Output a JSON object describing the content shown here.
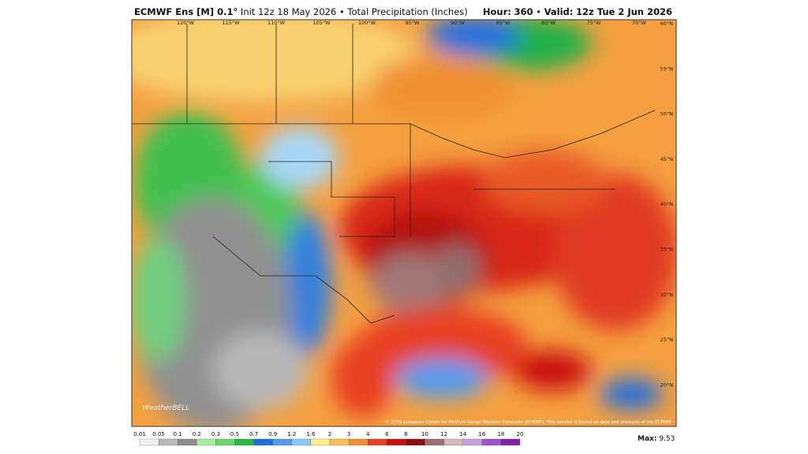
{
  "header": {
    "title_bold": "ECMWF Ens [M] 0.1°",
    "title_rest": "Init 12z 18 May 2026 • Total Precipitation (Inches)",
    "hour_label": "Hour:",
    "hour": "360",
    "valid_label": "Valid:",
    "valid": "12z Tue 2 Jun 2026"
  },
  "map": {
    "longitudes": [
      "120°W",
      "115°W",
      "110°W",
      "105°W",
      "100°W",
      "95°W",
      "90°W",
      "85°W",
      "80°W",
      "75°W",
      "70°W"
    ],
    "latitudes": [
      "60°N",
      "55°N",
      "50°N",
      "45°N",
      "40°N",
      "35°N",
      "30°N",
      "25°N",
      "20°N"
    ],
    "copyright": "© 2026 European Centre for Medium-Range Weather Forecasts (ECMWF). This service is based on data and products of the ECMWF.",
    "watermark": "WeatherBELL"
  },
  "colorbar": {
    "labels": [
      "0.01",
      "0.05",
      "0.1",
      "0.2",
      "0.3",
      "0.5",
      "0.7",
      "0.9",
      "1.2",
      "1.6",
      "2",
      "3",
      "4",
      "6",
      "8",
      "10",
      "12",
      "14",
      "16",
      "18",
      "20"
    ],
    "colors": [
      "#f2f2f2",
      "#b8b8b8",
      "#8c8c8c",
      "#a6eea0",
      "#6cd86a",
      "#2fb44a",
      "#1e6ee0",
      "#4f9cf0",
      "#8ec8f8",
      "#f8f08c",
      "#f8c050",
      "#f09030",
      "#e84020",
      "#c81010",
      "#8c1010",
      "#9c7070",
      "#d8b8b8",
      "#c8a0e0",
      "#a050d0",
      "#8020b0"
    ],
    "max_label": "Max:",
    "max": "9.53"
  }
}
